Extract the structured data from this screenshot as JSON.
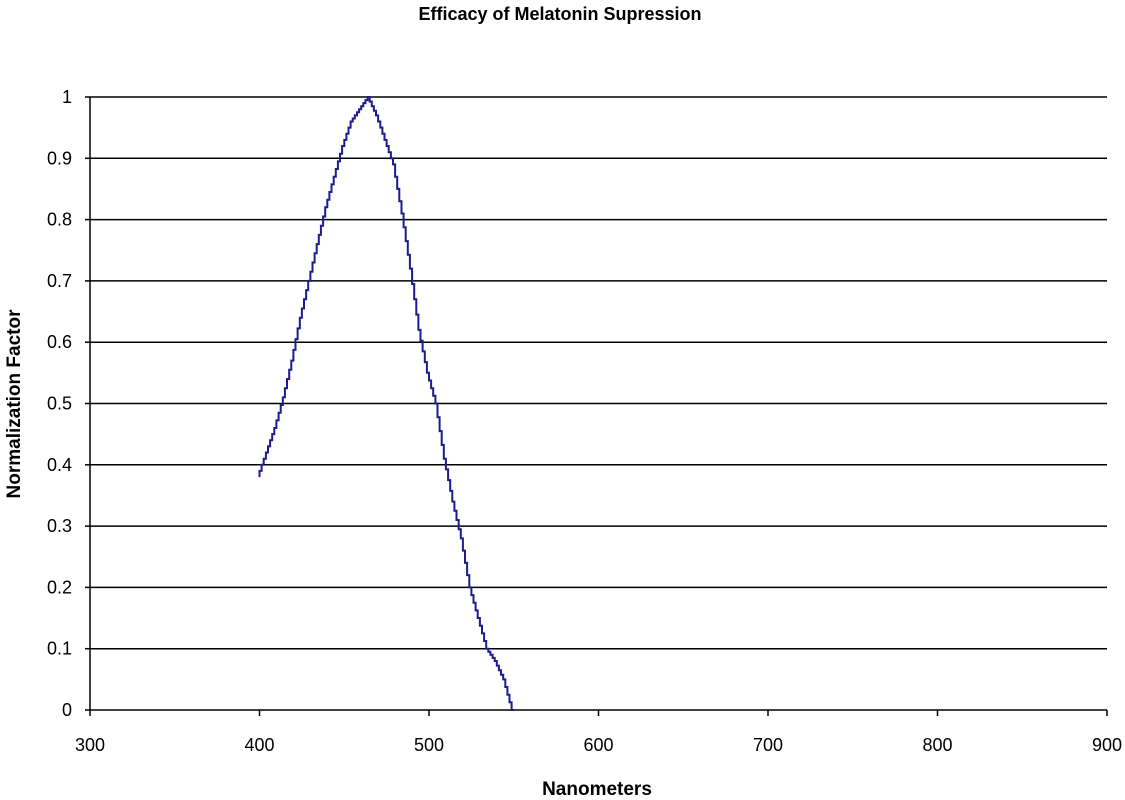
{
  "chart_data": {
    "type": "line",
    "title": "Efficacy of Melatonin Supression",
    "xlabel": "Nanometers",
    "ylabel": "Normalization Factor",
    "xlim": [
      300,
      900
    ],
    "ylim": [
      0,
      1
    ],
    "xticks": [
      300,
      400,
      500,
      600,
      700,
      800,
      900
    ],
    "yticks": [
      0,
      0.1,
      0.2,
      0.3,
      0.4,
      0.5,
      0.6,
      0.7,
      0.8,
      0.9,
      1
    ],
    "ytick_labels": [
      "0",
      "0.1",
      "0.2",
      "0.3",
      "0.4",
      "0.5",
      "0.6",
      "0.7",
      "0.8",
      "0.9",
      "1"
    ],
    "grid": "horizontal",
    "series": [
      {
        "color": "#1c1c8c",
        "x": [
          400,
          405,
          410,
          415,
          420,
          425,
          430,
          435,
          440,
          445,
          450,
          455,
          460,
          465,
          470,
          475,
          480,
          485,
          490,
          495,
          500,
          505,
          510,
          515,
          520,
          525,
          530,
          535,
          540,
          545,
          550
        ],
        "y": [
          0.38,
          0.42,
          0.46,
          0.51,
          0.57,
          0.64,
          0.7,
          0.76,
          0.82,
          0.87,
          0.92,
          0.96,
          0.98,
          1.0,
          0.97,
          0.93,
          0.89,
          0.81,
          0.72,
          0.62,
          0.55,
          0.5,
          0.41,
          0.34,
          0.28,
          0.2,
          0.15,
          0.1,
          0.08,
          0.05,
          0.0
        ]
      }
    ]
  }
}
